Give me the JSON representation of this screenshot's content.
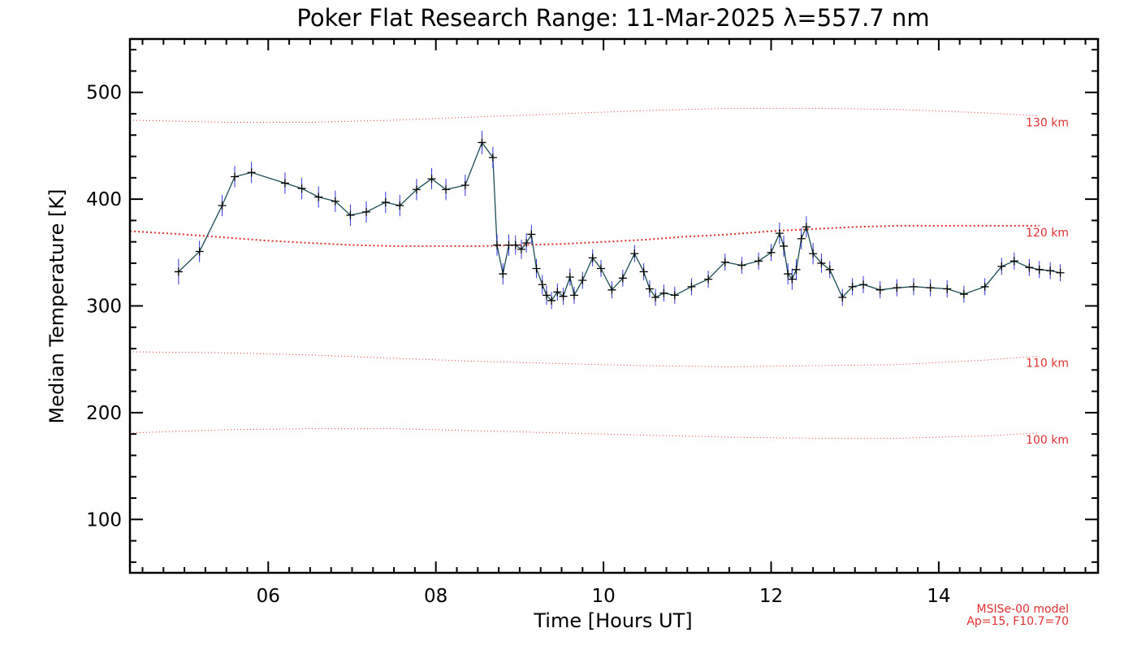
{
  "chart_data": {
    "type": "line",
    "title": "Poker Flat Research Range: 11-Mar-2025 λ=557.7 nm",
    "xlabel": "Time [Hours UT]",
    "ylabel": "Median Temperature [K]",
    "xlim": [
      4.35,
      15.9
    ],
    "ylim": [
      50,
      550
    ],
    "x_ticks": [
      {
        "value": 6,
        "label": "06"
      },
      {
        "value": 8,
        "label": "08"
      },
      {
        "value": 10,
        "label": "10"
      },
      {
        "value": 12,
        "label": "12"
      },
      {
        "value": 14,
        "label": "14"
      }
    ],
    "y_ticks": [
      {
        "value": 100,
        "label": "100"
      },
      {
        "value": 200,
        "label": "200"
      },
      {
        "value": 300,
        "label": "300"
      },
      {
        "value": 400,
        "label": "400"
      },
      {
        "value": 500,
        "label": "500"
      }
    ],
    "colors": {
      "series_line": "#1b4d55",
      "error_bar": "#3333dd",
      "marker": "#000000",
      "model_line": "#e0302f"
    },
    "series": [
      {
        "x": [
          4.93,
          5.18,
          5.45,
          5.6,
          5.8,
          6.2,
          6.4,
          6.6,
          6.8,
          6.98,
          7.17,
          7.4,
          7.57,
          7.77,
          7.95,
          8.12,
          8.35,
          8.55,
          8.68,
          8.73,
          8.8,
          8.87,
          8.95,
          9.02,
          9.08,
          9.14,
          9.2,
          9.27,
          9.32,
          9.38,
          9.45,
          9.52,
          9.6,
          9.65,
          9.75,
          9.87,
          9.97,
          10.1,
          10.23,
          10.37,
          10.48,
          10.55,
          10.62,
          10.72,
          10.85,
          11.05,
          11.25,
          11.45,
          11.65,
          11.85,
          12.0,
          12.1,
          12.15,
          12.2,
          12.25,
          12.3,
          12.36,
          12.42,
          12.5,
          12.6,
          12.7,
          12.85,
          12.97,
          13.1,
          13.3,
          13.5,
          13.7,
          13.9,
          14.1,
          14.3,
          14.55,
          14.75,
          14.9,
          15.08,
          15.2,
          15.33,
          15.45
        ],
        "y": [
          332,
          351,
          394,
          421,
          425,
          415,
          410,
          402,
          398,
          385,
          388,
          397,
          394,
          409,
          419,
          409,
          413,
          453,
          439,
          357,
          330,
          357,
          357,
          353,
          359,
          367,
          335,
          320,
          310,
          305,
          313,
          309,
          327,
          310,
          324,
          345,
          335,
          315,
          326,
          349,
          332,
          316,
          308,
          312,
          310,
          318,
          325,
          341,
          338,
          342,
          350,
          368,
          356,
          330,
          325,
          334,
          363,
          374,
          349,
          340,
          334,
          308,
          318,
          320,
          315,
          317,
          318,
          317,
          316,
          311,
          318,
          337,
          342,
          336,
          334,
          333,
          331
        ],
        "err": [
          12,
          10,
          10,
          10,
          10,
          10,
          10,
          10,
          10,
          10,
          10,
          10,
          10,
          10,
          10,
          10,
          10,
          11,
          10,
          10,
          10,
          10,
          9,
          9,
          9,
          9,
          9,
          9,
          9,
          8,
          8,
          8,
          8,
          8,
          8,
          8,
          8,
          8,
          8,
          8,
          8,
          8,
          8,
          8,
          8,
          8,
          8,
          8,
          8,
          8,
          8,
          10,
          10,
          10,
          10,
          10,
          10,
          10,
          10,
          9,
          8,
          8,
          8,
          8,
          8,
          8,
          8,
          8,
          8,
          8,
          8,
          8,
          8,
          8,
          8,
          8,
          8
        ]
      }
    ],
    "model_curves": [
      {
        "label": "130 km",
        "x": [
          4.35,
          5.5,
          6.5,
          7.5,
          8.5,
          9.5,
          10.5,
          11.5,
          12.5,
          13.5,
          14.5,
          15.2
        ],
        "y": [
          474,
          472,
          472,
          474,
          477,
          480,
          483,
          485,
          485,
          484,
          481,
          478
        ]
      },
      {
        "label": "120 km",
        "x": [
          4.35,
          5,
          5.5,
          6,
          6.5,
          7,
          7.5,
          8,
          8.5,
          9,
          9.5,
          10,
          10.5,
          11,
          11.5,
          12,
          12.5,
          13,
          13.5,
          14,
          14.5,
          15.2
        ],
        "y": [
          370,
          367,
          364,
          361,
          359,
          357,
          356,
          356,
          356,
          357,
          358,
          360,
          362,
          365,
          367,
          370,
          372,
          374,
          375,
          375,
          375,
          375
        ]
      },
      {
        "label": "110 km",
        "x": [
          4.35,
          5.5,
          6.5,
          7.5,
          8.5,
          9.5,
          10.5,
          11.5,
          12.5,
          13.5,
          14.5,
          15.2
        ],
        "y": [
          257,
          256,
          254,
          251,
          248,
          246,
          244,
          243,
          244,
          245,
          249,
          253
        ]
      },
      {
        "label": "100 km",
        "x": [
          4.35,
          5.5,
          6.5,
          7.5,
          8.5,
          9.5,
          10.5,
          11.5,
          12.5,
          13.5,
          14.5,
          15.2
        ],
        "y": [
          181,
          184,
          185,
          185,
          183,
          181,
          179,
          177,
          176,
          176,
          178,
          181
        ]
      }
    ],
    "model_text": [
      "MSISe-00 model",
      "Ap=15, F10.7=70"
    ]
  }
}
